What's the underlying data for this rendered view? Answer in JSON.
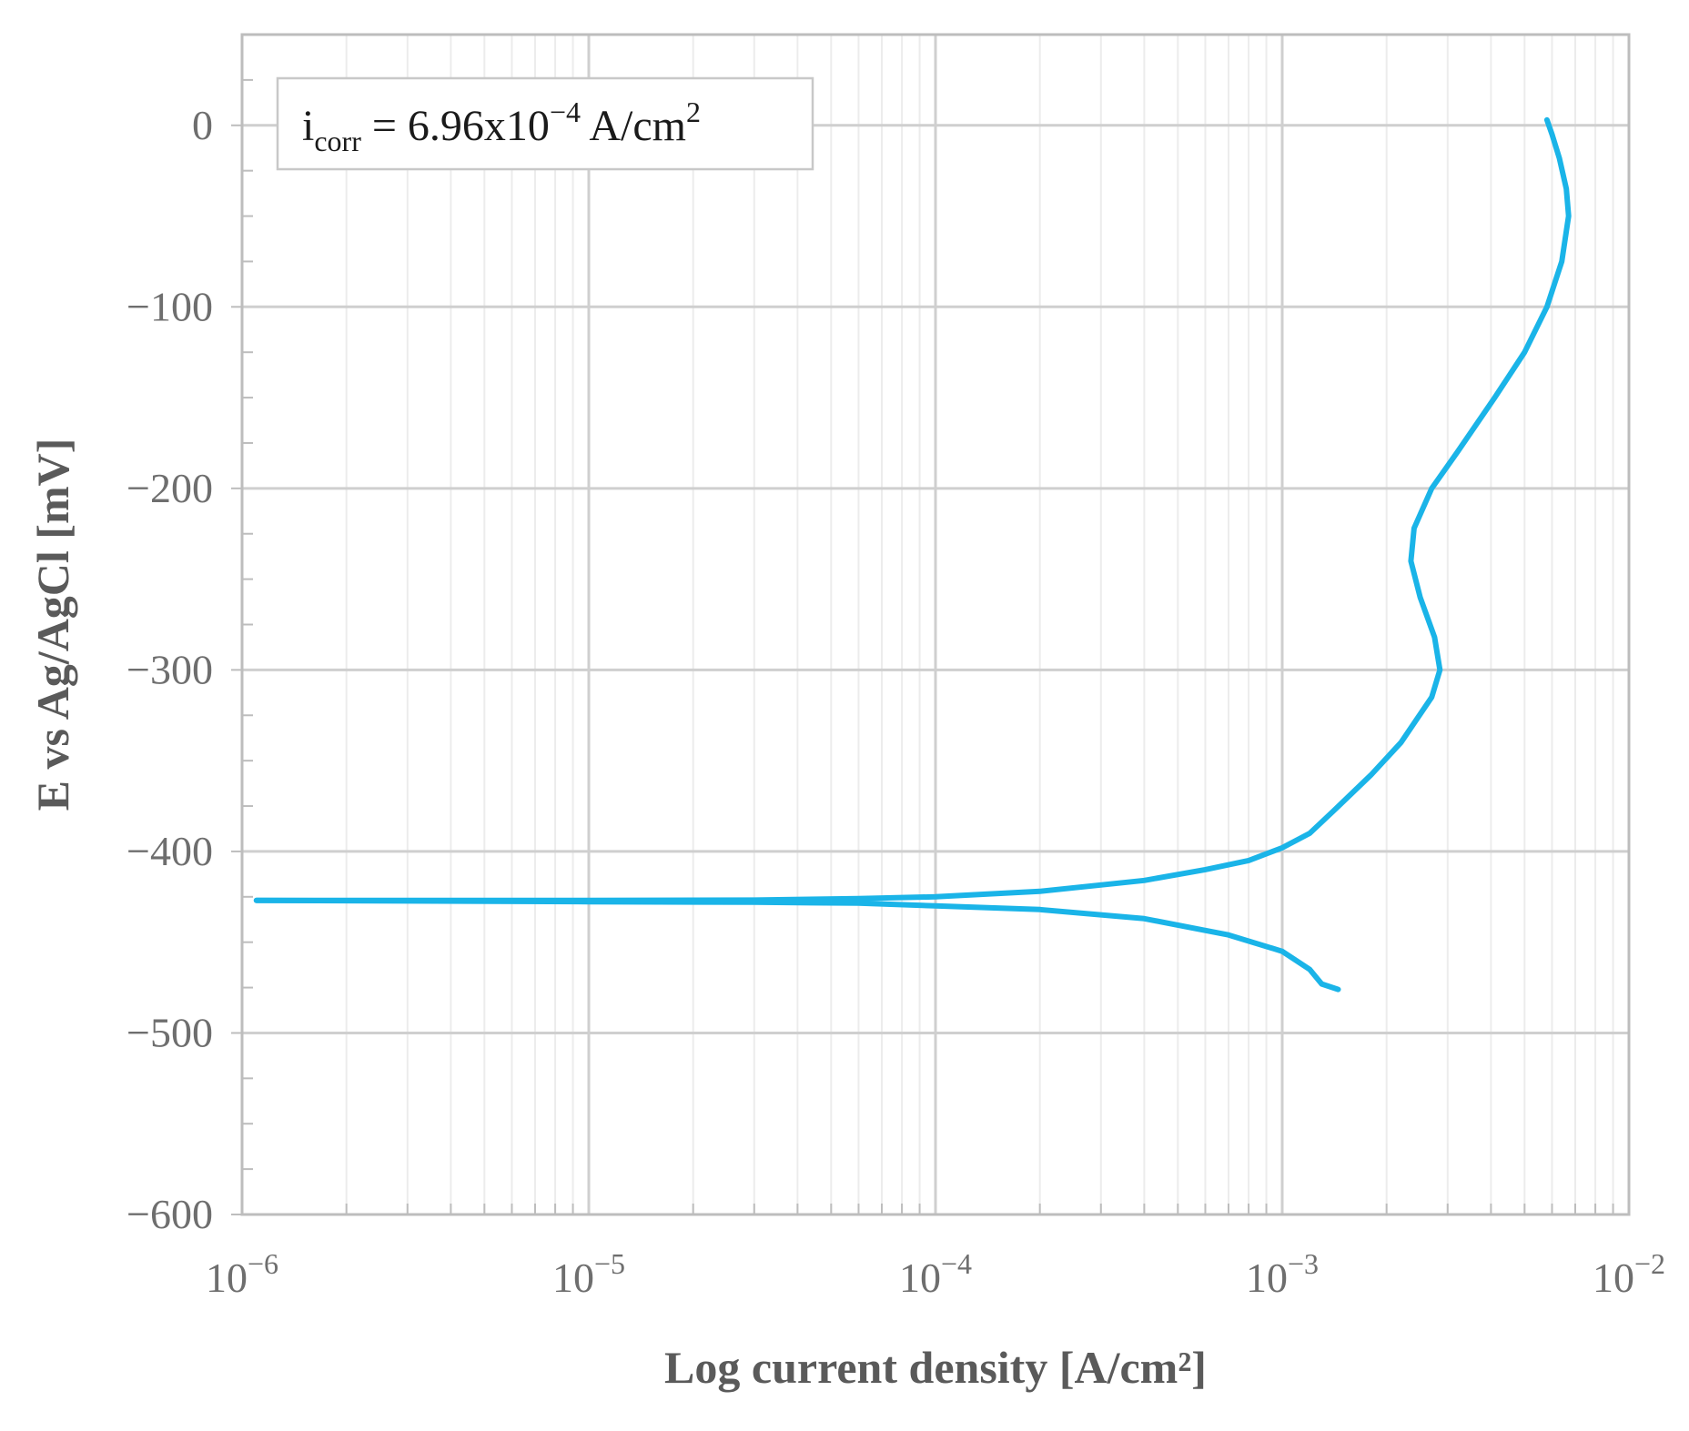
{
  "chart_data": {
    "type": "line",
    "title": "",
    "xlabel": "Log current density [A/cm²]",
    "ylabel": "E vs Ag/AgCl [mV]",
    "x_scale": "log",
    "xlim": [
      1e-06,
      0.01
    ],
    "ylim": [
      -600,
      50
    ],
    "grid": true,
    "x_ticks": [
      1e-06,
      1e-05,
      0.0001,
      0.001,
      0.01
    ],
    "x_tick_labels": [
      {
        "base": "10",
        "exp": "−6"
      },
      {
        "base": "10",
        "exp": "−5"
      },
      {
        "base": "10",
        "exp": "−4"
      },
      {
        "base": "10",
        "exp": "−3"
      },
      {
        "base": "10",
        "exp": "−2"
      }
    ],
    "y_ticks": [
      0,
      -100,
      -200,
      -300,
      -400,
      -500,
      -600
    ],
    "y_tick_labels": [
      "0",
      "−100",
      "−200",
      "−300",
      "−400",
      "−500",
      "−600"
    ],
    "annotation": {
      "main": "i",
      "sub": "corr",
      "mid": " = 6.96x10",
      "exp": "−4",
      "unit": " A/cm",
      "unit_exp": "2"
    },
    "series": [
      {
        "color": "#1ab4e8",
        "points": [
          [
            1.1e-06,
            -427
          ],
          [
            3e-06,
            -427.3
          ],
          [
            1e-05,
            -427.7
          ],
          [
            3e-05,
            -428
          ],
          [
            6e-05,
            -428.5
          ],
          [
            0.0001,
            -430
          ],
          [
            0.0002,
            -432
          ],
          [
            0.0004,
            -437
          ],
          [
            0.0007,
            -446
          ],
          [
            0.001,
            -455
          ],
          [
            0.0012,
            -465
          ],
          [
            0.0013,
            -473
          ],
          [
            0.00145,
            -476
          ]
        ]
      },
      {
        "color": "#1ab4e8",
        "points": [
          [
            1.1e-06,
            -427
          ],
          [
            3e-06,
            -427
          ],
          [
            1e-05,
            -427
          ],
          [
            3e-05,
            -426.8
          ],
          [
            6e-05,
            -426
          ],
          [
            0.0001,
            -425
          ],
          [
            0.0002,
            -422
          ],
          [
            0.0004,
            -416
          ],
          [
            0.0006,
            -410
          ],
          [
            0.0008,
            -405
          ],
          [
            0.001,
            -398
          ],
          [
            0.0012,
            -390
          ],
          [
            0.0014,
            -378
          ],
          [
            0.0018,
            -358
          ],
          [
            0.0022,
            -340
          ],
          [
            0.0027,
            -315
          ],
          [
            0.00285,
            -300
          ],
          [
            0.00275,
            -282
          ],
          [
            0.0025,
            -260
          ],
          [
            0.00235,
            -240
          ],
          [
            0.0024,
            -222
          ],
          [
            0.0027,
            -200
          ],
          [
            0.0032,
            -180
          ],
          [
            0.0041,
            -150
          ],
          [
            0.005,
            -125
          ],
          [
            0.0058,
            -100
          ],
          [
            0.0064,
            -75
          ],
          [
            0.0067,
            -50
          ],
          [
            0.0066,
            -35
          ],
          [
            0.0063,
            -18
          ],
          [
            0.006,
            -5
          ],
          [
            0.0058,
            3
          ]
        ]
      }
    ]
  }
}
